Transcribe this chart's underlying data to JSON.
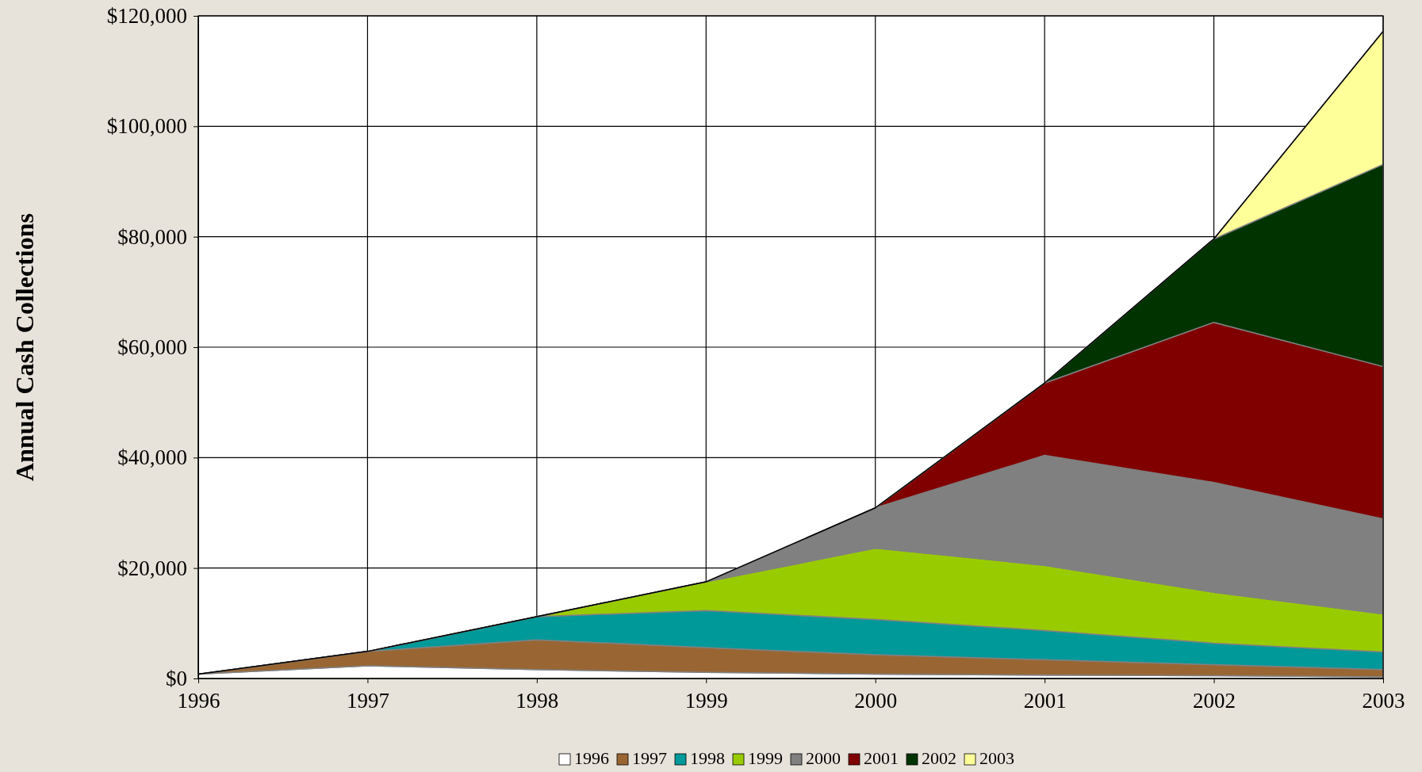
{
  "chart_data": {
    "type": "area",
    "stacked": true,
    "ylabel": "Annual Cash Collections",
    "x": [
      1996,
      1997,
      1998,
      1999,
      2000,
      2001,
      2002,
      2003
    ],
    "xlim": [
      1996,
      2003
    ],
    "xticks": [
      1996,
      1997,
      1998,
      1999,
      2000,
      2001,
      2002,
      2003
    ],
    "ylim": [
      0,
      120000
    ],
    "yticks": [
      {
        "value": 0,
        "label": "$0"
      },
      {
        "value": 20000,
        "label": "$20,000"
      },
      {
        "value": 40000,
        "label": "$40,000"
      },
      {
        "value": 60000,
        "label": "$60,000"
      },
      {
        "value": 80000,
        "label": "$80,000"
      },
      {
        "value": 100000,
        "label": "$100,000"
      },
      {
        "value": 120000,
        "label": "$120,000"
      }
    ],
    "grid": true,
    "legend": "bottom",
    "series": [
      {
        "name": "1996",
        "color": "#ffffff",
        "values": [
          800,
          2300,
          1600,
          1100,
          800,
          600,
          500,
          300
        ]
      },
      {
        "name": "1997",
        "color": "#996633",
        "values": [
          0,
          2600,
          5400,
          4500,
          3500,
          2800,
          2000,
          1300
        ]
      },
      {
        "name": "1998",
        "color": "#009999",
        "values": [
          0,
          0,
          4200,
          6700,
          6400,
          5300,
          3900,
          3200
        ]
      },
      {
        "name": "1999",
        "color": "#99cc00",
        "values": [
          0,
          0,
          0,
          5200,
          12900,
          11800,
          9200,
          6900
        ]
      },
      {
        "name": "2000",
        "color": "#808080",
        "values": [
          0,
          0,
          0,
          0,
          7300,
          19900,
          19900,
          17200
        ]
      },
      {
        "name": "2001",
        "color": "#800000",
        "values": [
          0,
          0,
          0,
          0,
          0,
          13100,
          29000,
          27600
        ]
      },
      {
        "name": "2002",
        "color": "#003300",
        "values": [
          0,
          0,
          0,
          0,
          0,
          0,
          15100,
          36600
        ]
      },
      {
        "name": "2003",
        "color": "#ffff99",
        "values": [
          0,
          0,
          0,
          0,
          0,
          0,
          0,
          24100
        ]
      }
    ]
  }
}
